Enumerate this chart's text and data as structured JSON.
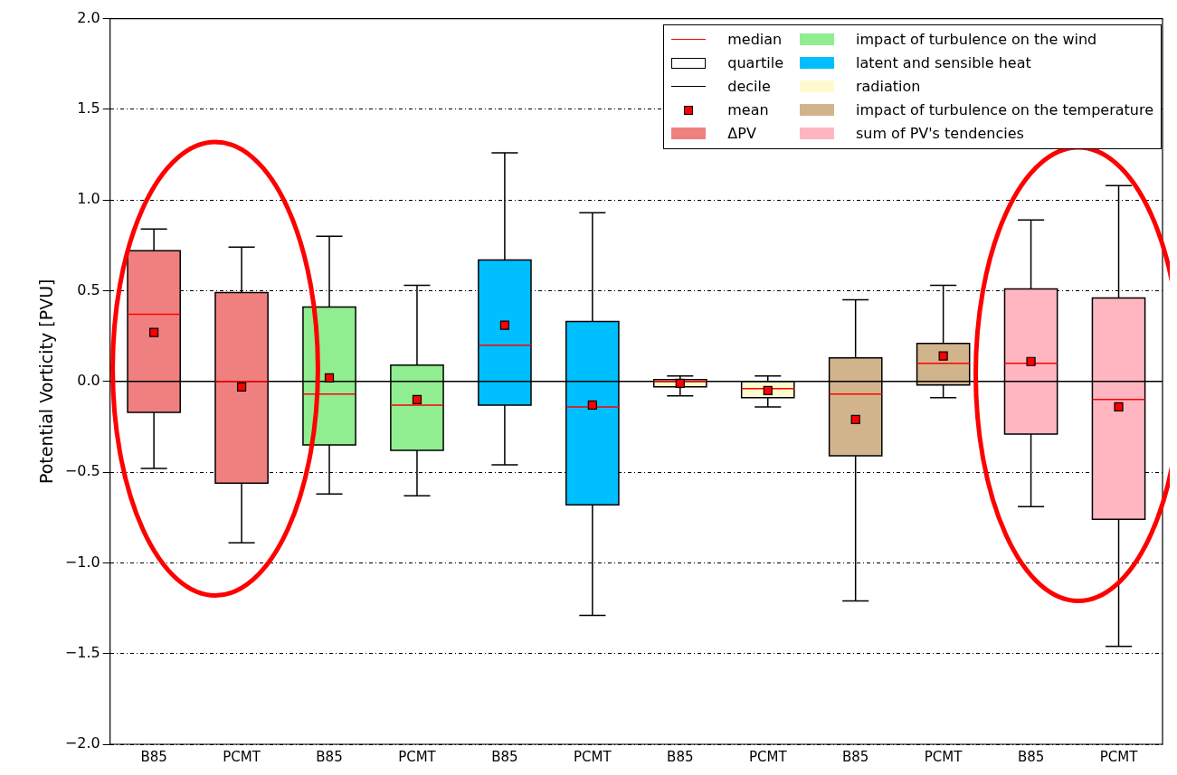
{
  "chart_data": {
    "type": "box",
    "ylabel": "Potential Vorticity [PVU]",
    "categories": [
      "B85",
      "PCMT",
      "B85",
      "PCMT",
      "B85",
      "PCMT",
      "B85",
      "PCMT",
      "B85",
      "PCMT",
      "B85",
      "PCMT"
    ],
    "series": [
      {
        "name": "ΔPV",
        "color": "#f08080",
        "boxes": [
          {
            "low": -0.48,
            "q1": -0.17,
            "median": 0.37,
            "q3": 0.72,
            "high": 0.84,
            "mean": 0.27
          },
          {
            "low": -0.89,
            "q1": -0.56,
            "median": 0.0,
            "q3": 0.49,
            "high": 0.74,
            "mean": -0.03
          },
          null,
          null,
          null,
          null,
          null,
          null,
          null,
          null,
          null,
          null
        ]
      },
      {
        "name": "impact of turbulence on the wind",
        "color": "#90ee90",
        "boxes": [
          null,
          null,
          {
            "low": -0.62,
            "q1": -0.35,
            "median": -0.07,
            "q3": 0.41,
            "high": 0.8,
            "mean": 0.02
          },
          {
            "low": -0.63,
            "q1": -0.38,
            "median": -0.13,
            "q3": 0.09,
            "high": 0.53,
            "mean": -0.1
          },
          null,
          null,
          null,
          null,
          null,
          null,
          null,
          null
        ]
      },
      {
        "name": "latent and sensible heat",
        "color": "#00bfff",
        "boxes": [
          null,
          null,
          null,
          null,
          {
            "low": -0.46,
            "q1": -0.13,
            "median": 0.2,
            "q3": 0.67,
            "high": 1.26,
            "mean": 0.31
          },
          {
            "low": -1.29,
            "q1": -0.68,
            "median": -0.14,
            "q3": 0.33,
            "high": 0.93,
            "mean": -0.13
          },
          null,
          null,
          null,
          null,
          null,
          null
        ]
      },
      {
        "name": "radiation",
        "color": "#fffacd",
        "boxes": [
          null,
          null,
          null,
          null,
          null,
          null,
          {
            "low": -0.08,
            "q1": -0.03,
            "median": 0.0,
            "q3": 0.01,
            "high": 0.03,
            "mean": -0.01
          },
          {
            "low": -0.14,
            "q1": -0.09,
            "median": -0.04,
            "q3": 0.0,
            "high": 0.03,
            "mean": -0.05
          },
          null,
          null,
          null,
          null
        ]
      },
      {
        "name": "impact of turbulence on the temperature",
        "color": "#d2b48c",
        "boxes": [
          null,
          null,
          null,
          null,
          null,
          null,
          null,
          null,
          {
            "low": -1.21,
            "q1": -0.41,
            "median": -0.07,
            "q3": 0.13,
            "high": 0.45,
            "mean": -0.21
          },
          {
            "low": -0.09,
            "q1": -0.02,
            "median": 0.1,
            "q3": 0.21,
            "high": 0.53,
            "mean": 0.14
          },
          null,
          null
        ]
      },
      {
        "name": "sum of PV's tendencies",
        "color": "#ffb6c1",
        "boxes": [
          null,
          null,
          null,
          null,
          null,
          null,
          null,
          null,
          null,
          null,
          {
            "low": -0.69,
            "q1": -0.29,
            "median": 0.1,
            "q3": 0.51,
            "high": 0.89,
            "mean": 0.11
          },
          {
            "low": -1.46,
            "q1": -0.76,
            "median": -0.1,
            "q3": 0.46,
            "high": 1.08,
            "mean": -0.14
          }
        ]
      }
    ],
    "annotations": [
      "median",
      "quartile",
      "decile",
      "mean"
    ],
    "ylim": [
      -2,
      2
    ],
    "yticks": [
      {
        "value": -2,
        "label": "−2.0"
      },
      {
        "value": -1.5,
        "label": "−1.5"
      },
      {
        "value": -1,
        "label": "−1.0"
      },
      {
        "value": -0.5,
        "label": "−0.5"
      },
      {
        "value": 0,
        "label": "0.0"
      },
      {
        "value": 0.5,
        "label": "0.5"
      },
      {
        "value": 1,
        "label": "1.0"
      },
      {
        "value": 1.5,
        "label": "1.5"
      },
      {
        "value": 2,
        "label": "2.0"
      }
    ],
    "ref_lines": [
      {
        "axis": "y",
        "value": 0,
        "color": "#000000"
      }
    ],
    "grid": "y",
    "legend": "top right"
  }
}
